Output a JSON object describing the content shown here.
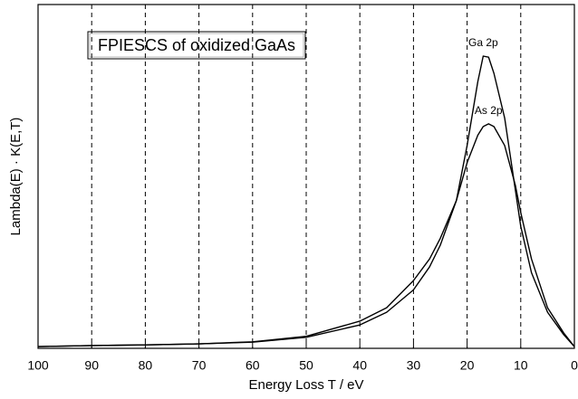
{
  "chart_data": {
    "type": "line",
    "title": "FPIESCS of oxidized GaAs",
    "x_label": "Energy Loss T / eV",
    "y_label": "Lambda(E) · K(E,T)",
    "x": [
      100,
      90,
      80,
      70,
      60,
      50,
      40,
      35,
      30,
      27,
      25,
      22,
      20,
      18,
      17,
      16,
      15,
      13,
      11,
      10,
      8,
      5,
      2,
      0
    ],
    "series": [
      {
        "name": "Ga 2p",
        "color": "#000000",
        "values": [
          0.5,
          0.8,
          1,
          1.3,
          1.8,
          3.2,
          6.8,
          10.5,
          17,
          23.7,
          30,
          43,
          59,
          77.6,
          85,
          84.7,
          80,
          67,
          46,
          35.5,
          22,
          10.5,
          4,
          0.5
        ]
      },
      {
        "name": "As 2p",
        "color": "#000000",
        "values": [
          0.5,
          0.8,
          1,
          1.3,
          1.9,
          3.5,
          7.9,
          11.8,
          19.7,
          26,
          32,
          43,
          54,
          62,
          64.5,
          65.3,
          64.5,
          59,
          47.4,
          39.5,
          26,
          11.8,
          4.5,
          0.5
        ]
      }
    ],
    "xlim": [
      100,
      0
    ],
    "xticks": [
      100,
      90,
      80,
      70,
      60,
      50,
      40,
      30,
      20,
      10,
      0
    ],
    "ylim": [
      0,
      100
    ],
    "grid": true
  }
}
